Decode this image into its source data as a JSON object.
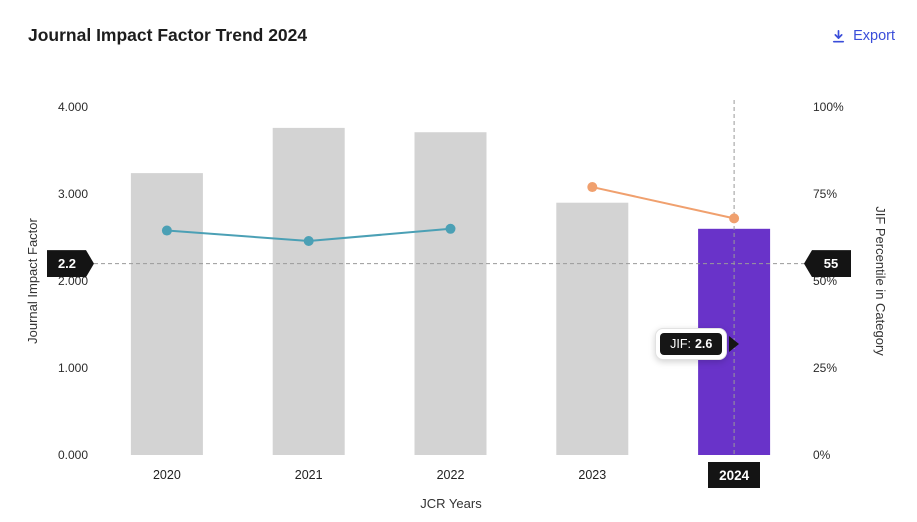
{
  "header": {
    "title": "Journal Impact Factor Trend 2024",
    "export_label": "Export",
    "export_color": "#3a4dd9"
  },
  "chart_data": {
    "type": "combo-bar-line",
    "title": "Journal Impact Factor Trend 2024",
    "categories": [
      "2020",
      "2021",
      "2022",
      "2023",
      "2024"
    ],
    "xlabel": "JCR Years",
    "left_axis": {
      "label": "Journal Impact Factor",
      "range": [
        0,
        4
      ],
      "ticks": [
        "0.000",
        "1.000",
        "2.000",
        "3.000",
        "4.000"
      ]
    },
    "right_axis": {
      "label": "JIF Percentile in Category",
      "range": [
        0,
        100
      ],
      "ticks": [
        "0%",
        "25%",
        "50%",
        "75%",
        "100%"
      ]
    },
    "bar_series": {
      "name": "Journal Impact Factor",
      "axis": "left",
      "values": [
        3.24,
        3.76,
        3.71,
        2.9,
        2.6
      ],
      "colors": [
        "#d3d3d3",
        "#d3d3d3",
        "#d3d3d3",
        "#d3d3d3",
        "#6933c9"
      ],
      "highlight_category": "2024"
    },
    "line_series": [
      {
        "name": "jif-percentile-2020-2022",
        "axis": "right",
        "color": "#4ba0b5",
        "points": [
          {
            "x": "2020",
            "y": 64.5
          },
          {
            "x": "2021",
            "y": 61.5
          },
          {
            "x": "2022",
            "y": 65
          }
        ]
      },
      {
        "name": "jif-percentile-2023-2024",
        "axis": "right",
        "color": "#f0a06e",
        "points": [
          {
            "x": "2023",
            "y": 77
          },
          {
            "x": "2024",
            "y": 68
          }
        ]
      }
    ],
    "crosshair": {
      "year_label": "2024",
      "jif_value_label": "2.2",
      "percentile_value_label": "55"
    },
    "tooltip": {
      "label": "JIF:",
      "value": "2.6"
    },
    "legend": false,
    "grid": false
  }
}
